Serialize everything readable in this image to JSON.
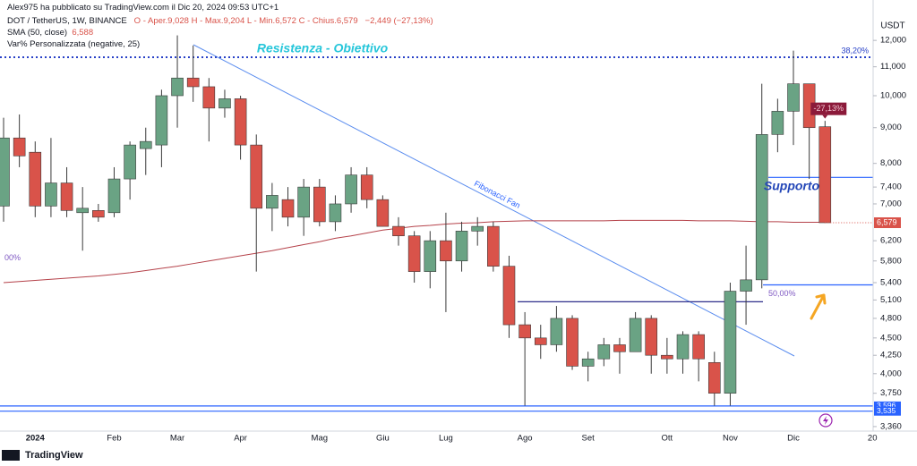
{
  "header": {
    "author_line": "Alex975 ha pubblicato su TradingView.com il Dic 20, 2024 09:53 UTC+1",
    "symbol": "DOT / TetherUS, 1W, BINANCE",
    "ohlc": "O - Aper.9,028  H - Max.9,204  L - Min.6,572  C - Chius.6,579",
    "change": "−2,449 (−27,13%)",
    "sma_label": "SMA (50, close)",
    "sma_value": "6,588",
    "indicator": "Var% Personalizzata (negative, 25)"
  },
  "footer": {
    "brand": "TradingView"
  },
  "chart_data": {
    "type": "candlestick",
    "currency": "USDT",
    "log_scale": true,
    "categories": [
      null,
      null,
      "2024",
      null,
      null,
      null,
      null,
      "Feb",
      null,
      null,
      null,
      "Mar",
      null,
      null,
      null,
      "Apr",
      null,
      null,
      null,
      null,
      "Mag",
      null,
      null,
      null,
      "Giu",
      null,
      null,
      null,
      "Lug",
      null,
      null,
      null,
      null,
      "Ago",
      null,
      null,
      null,
      "Set",
      null,
      null,
      null,
      null,
      "Ott",
      null,
      null,
      null,
      "Nov",
      null,
      null,
      null,
      "Dic",
      null,
      null,
      null,
      null,
      "20"
    ],
    "open": [
      6.95,
      8.7,
      8.3,
      6.95,
      7.5,
      6.8,
      6.85,
      6.8,
      7.6,
      8.4,
      8.5,
      10.0,
      10.6,
      10.3,
      9.6,
      9.9,
      8.5,
      6.9,
      7.1,
      6.7,
      7.4,
      6.6,
      7.0,
      7.7,
      7.1,
      6.5,
      6.3,
      5.6,
      6.2,
      5.8,
      6.4,
      6.5,
      5.7,
      4.7,
      4.5,
      4.4,
      4.8,
      4.1,
      4.2,
      4.4,
      4.3,
      4.8,
      4.25,
      4.2,
      4.55,
      4.15,
      3.75,
      5.25,
      5.45,
      8.8,
      9.5,
      10.4,
      9.028,
      null,
      null,
      null
    ],
    "high": [
      9.3,
      9.4,
      8.6,
      8.7,
      7.9,
      7.4,
      7.0,
      7.9,
      8.6,
      9.0,
      10.2,
      12.2,
      11.8,
      10.6,
      10.2,
      10.0,
      8.8,
      7.5,
      7.4,
      7.6,
      7.6,
      7.2,
      7.9,
      7.9,
      7.2,
      6.7,
      6.4,
      6.4,
      6.8,
      6.6,
      6.7,
      6.6,
      5.9,
      4.9,
      4.7,
      5.0,
      4.85,
      4.3,
      4.5,
      4.5,
      4.9,
      4.85,
      4.5,
      4.6,
      4.6,
      4.3,
      5.4,
      6.1,
      10.4,
      9.9,
      11.6,
      10.4,
      9.204,
      null,
      null,
      null
    ],
    "low": [
      6.6,
      7.9,
      6.7,
      6.7,
      6.7,
      6.0,
      6.6,
      6.7,
      7.1,
      7.7,
      7.9,
      9.0,
      9.8,
      8.6,
      9.3,
      8.1,
      5.6,
      6.4,
      6.5,
      6.3,
      6.5,
      6.4,
      6.8,
      6.9,
      6.5,
      6.1,
      5.4,
      5.3,
      4.9,
      5.6,
      6.1,
      5.6,
      4.5,
      3.6,
      4.2,
      4.3,
      4.05,
      3.9,
      4.1,
      4.0,
      4.3,
      4.0,
      4.0,
      4.0,
      3.9,
      3.6,
      3.6,
      4.7,
      5.3,
      8.3,
      8.5,
      7.6,
      6.572,
      null,
      null,
      null
    ],
    "close": [
      8.7,
      8.2,
      6.95,
      7.5,
      6.85,
      6.9,
      6.7,
      7.6,
      8.5,
      8.6,
      10.0,
      10.6,
      10.3,
      9.6,
      9.9,
      8.5,
      6.9,
      7.2,
      6.7,
      7.4,
      6.6,
      7.0,
      7.7,
      7.1,
      6.5,
      6.3,
      5.6,
      6.2,
      5.8,
      6.4,
      6.5,
      5.7,
      4.7,
      4.5,
      4.4,
      4.8,
      4.1,
      4.2,
      4.4,
      4.3,
      4.8,
      4.25,
      4.2,
      4.55,
      4.2,
      3.75,
      5.25,
      5.45,
      8.8,
      9.5,
      10.4,
      9.0,
      6.579,
      null,
      null,
      null
    ],
    "up_color": "#6aa384",
    "down_color": "#d9534a",
    "sma": {
      "color": "#b5424a",
      "values": [
        5.4,
        5.42,
        5.44,
        5.46,
        5.48,
        5.5,
        5.52,
        5.55,
        5.58,
        5.62,
        5.66,
        5.7,
        5.75,
        5.8,
        5.85,
        5.9,
        5.95,
        6.0,
        6.06,
        6.12,
        6.18,
        6.25,
        6.3,
        6.36,
        6.42,
        6.46,
        6.5,
        6.52,
        6.55,
        6.57,
        6.58,
        6.6,
        6.61,
        6.62,
        6.62,
        6.62,
        6.62,
        6.62,
        6.62,
        6.63,
        6.63,
        6.63,
        6.63,
        6.63,
        6.62,
        6.62,
        6.62,
        6.61,
        6.6,
        6.6,
        6.59,
        6.59,
        6.588,
        null,
        null,
        null
      ]
    },
    "last_label": "6,579",
    "ylim": [
      3.31,
      13.0
    ],
    "yticks": [
      {
        "value": 3.36,
        "label": "3,360"
      },
      {
        "value": 3.75,
        "label": "3,750"
      },
      {
        "value": 4,
        "label": "4,000"
      },
      {
        "value": 4.25,
        "label": "4,250"
      },
      {
        "value": 4.5,
        "label": "4,500"
      },
      {
        "value": 4.8,
        "label": "4,800"
      },
      {
        "value": 5.1,
        "label": "5,100"
      },
      {
        "value": 5.4,
        "label": "5,400"
      },
      {
        "value": 5.8,
        "label": "5,800"
      },
      {
        "value": 6.2,
        "label": "6,200"
      },
      {
        "value": 7,
        "label": "7,000"
      },
      {
        "value": 7.4,
        "label": "7,400"
      },
      {
        "value": 8,
        "label": "8,000"
      },
      {
        "value": 9,
        "label": "9,000"
      },
      {
        "value": 10,
        "label": "10,000"
      },
      {
        "value": 11,
        "label": "11,000"
      },
      {
        "value": 12,
        "label": "12,000"
      }
    ],
    "levels": [
      {
        "value": 11.35,
        "label": "38,20%",
        "color": "#2740c7"
      },
      {
        "value": 7.64,
        "color": "#2962ff"
      },
      {
        "value": 5.36,
        "label": "50,00%",
        "color": "#2962ff"
      },
      {
        "value": 5.07,
        "color": "#2e2f8a"
      },
      {
        "value": 3.596,
        "axis_label": "3,596",
        "color": "#2962ff"
      },
      {
        "value": 3.535,
        "axis_label": "3,535",
        "color": "#2962ff"
      },
      {
        "value": 5.85,
        "label": "00%",
        "color": "#7e57c2"
      }
    ],
    "annotations": [
      "Resistenza - Obiettivo",
      "Supporto",
      "Fibonacci Fan"
    ],
    "badge": "-27,13%"
  }
}
